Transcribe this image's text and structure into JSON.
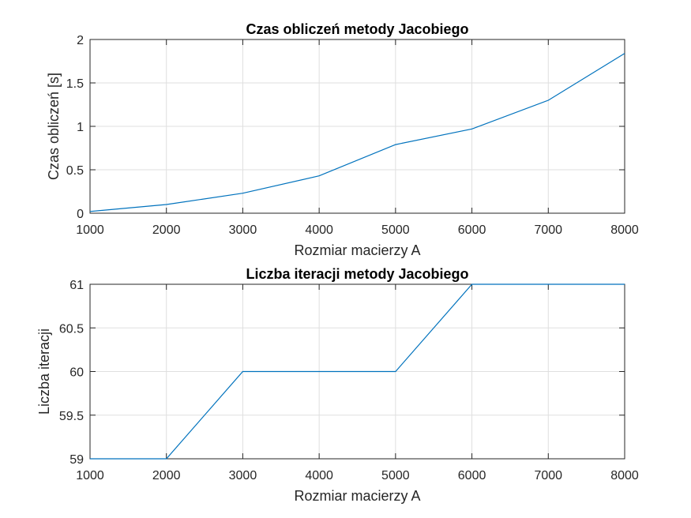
{
  "chart_data": [
    {
      "type": "line",
      "title": "Czas obliczeń metody Jacobiego",
      "xlabel": "Rozmiar macierzy A",
      "ylabel": "Czas obliczeń [s]",
      "xlim": [
        1000,
        8000
      ],
      "ylim": [
        0,
        2
      ],
      "xticks": [
        1000,
        2000,
        3000,
        4000,
        5000,
        6000,
        7000,
        8000
      ],
      "yticks": [
        0,
        0.5,
        1,
        1.5,
        2
      ],
      "xtick_labels": [
        "1000",
        "2000",
        "3000",
        "4000",
        "5000",
        "6000",
        "7000",
        "8000"
      ],
      "ytick_labels": [
        "0",
        "0.5",
        "1",
        "1.5",
        "2"
      ],
      "grid": true,
      "color": "#0072bd",
      "x": [
        1000,
        2000,
        3000,
        4000,
        5000,
        6000,
        7000,
        8000
      ],
      "y": [
        0.02,
        0.1,
        0.23,
        0.43,
        0.79,
        0.97,
        1.3,
        1.84
      ]
    },
    {
      "type": "line",
      "title": "Liczba iteracji metody Jacobiego",
      "xlabel": "Rozmiar macierzy A",
      "ylabel": "Liczba iteracji",
      "xlim": [
        1000,
        8000
      ],
      "ylim": [
        59,
        61
      ],
      "xticks": [
        1000,
        2000,
        3000,
        4000,
        5000,
        6000,
        7000,
        8000
      ],
      "yticks": [
        59,
        59.5,
        60,
        60.5,
        61
      ],
      "xtick_labels": [
        "1000",
        "2000",
        "3000",
        "4000",
        "5000",
        "6000",
        "7000",
        "8000"
      ],
      "ytick_labels": [
        "59",
        "59.5",
        "60",
        "60.5",
        "61"
      ],
      "grid": true,
      "color": "#0072bd",
      "x": [
        1000,
        2000,
        3000,
        4000,
        5000,
        6000,
        7000,
        8000
      ],
      "y": [
        59,
        59,
        60,
        60,
        60,
        61,
        61,
        61
      ]
    }
  ]
}
